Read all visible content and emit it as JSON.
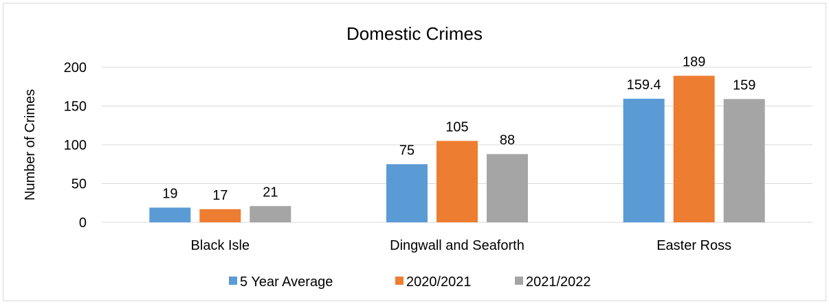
{
  "chart_data": {
    "type": "bar",
    "title": "Domestic Crimes",
    "xlabel": "",
    "ylabel": "Number of Crimes",
    "categories": [
      "Black Isle",
      "Dingwall and Seaforth",
      "Easter Ross"
    ],
    "series": [
      {
        "name": "5 Year Average",
        "values": [
          19,
          75,
          159.4
        ],
        "labels": [
          "19",
          "75",
          "159.4"
        ],
        "color": "#5b9bd5"
      },
      {
        "name": "2020/2021",
        "values": [
          17,
          105,
          189
        ],
        "labels": [
          "17",
          "105",
          "189"
        ],
        "color": "#ed7d31"
      },
      {
        "name": "2021/2022",
        "values": [
          21,
          88,
          159
        ],
        "labels": [
          "21",
          "88",
          "159"
        ],
        "color": "#a5a5a5"
      }
    ],
    "ylim": [
      0,
      200
    ],
    "yticks": [
      "0",
      "50",
      "100",
      "150",
      "200"
    ],
    "grid": true,
    "legend_position": "bottom"
  }
}
